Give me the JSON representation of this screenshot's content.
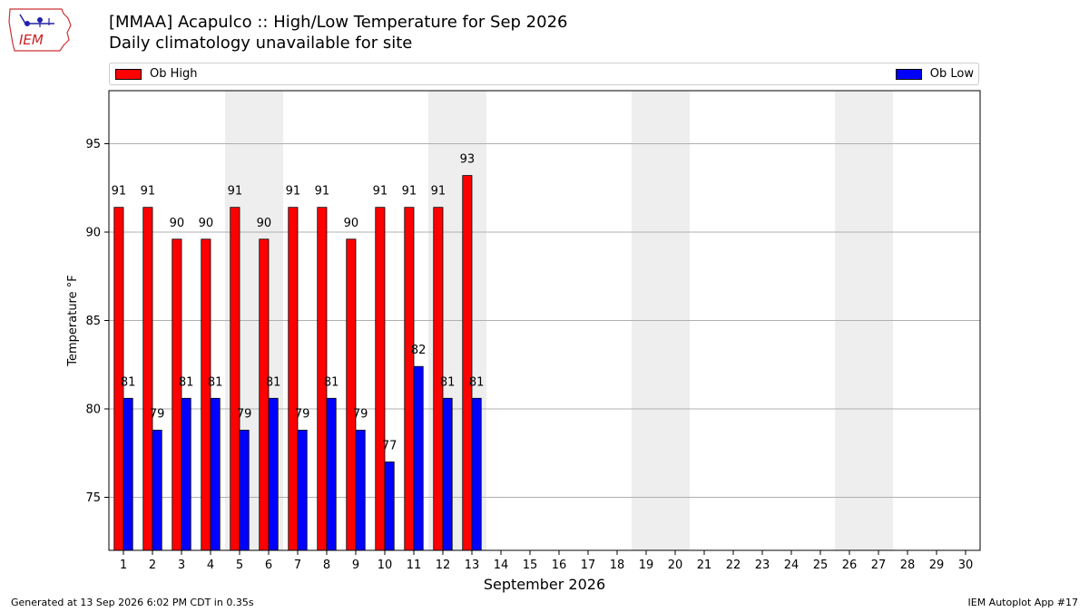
{
  "logo": {
    "text": "IEM"
  },
  "header": {
    "title": "[MMAA] Acapulco :: High/Low Temperature for Sep 2026",
    "subtitle": "Daily climatology unavailable for site"
  },
  "legend": {
    "high_label": "Ob High",
    "low_label": "Ob Low"
  },
  "footer": {
    "left": "Generated at 13 Sep 2026 6:02 PM CDT in 0.35s",
    "right": "IEM Autoplot App #17"
  },
  "chart_data": {
    "type": "bar",
    "title": "[MMAA] Acapulco :: High/Low Temperature for Sep 2026",
    "subtitle": "Daily climatology unavailable for site",
    "xlabel": "September 2026",
    "ylabel": "Temperature °F",
    "categories": [
      "1",
      "2",
      "3",
      "4",
      "5",
      "6",
      "7",
      "8",
      "9",
      "10",
      "11",
      "12",
      "13",
      "14",
      "15",
      "16",
      "17",
      "18",
      "19",
      "20",
      "21",
      "22",
      "23",
      "24",
      "25",
      "26",
      "27",
      "28",
      "29",
      "30"
    ],
    "series": [
      {
        "name": "Ob High",
        "color": "#ff0000",
        "values": [
          91.4,
          91.4,
          89.6,
          89.6,
          91.4,
          89.6,
          91.4,
          91.4,
          89.6,
          91.4,
          91.4,
          91.4,
          93.2,
          null,
          null,
          null,
          null,
          null,
          null,
          null,
          null,
          null,
          null,
          null,
          null,
          null,
          null,
          null,
          null,
          null
        ],
        "labels": [
          "91",
          "91",
          "90",
          "90",
          "91",
          "90",
          "91",
          "91",
          "90",
          "91",
          "91",
          "91",
          "93"
        ]
      },
      {
        "name": "Ob Low",
        "color": "#0000ff",
        "values": [
          80.6,
          78.8,
          80.6,
          80.6,
          78.8,
          80.6,
          78.8,
          80.6,
          78.8,
          77.0,
          82.4,
          80.6,
          80.6,
          null,
          null,
          null,
          null,
          null,
          null,
          null,
          null,
          null,
          null,
          null,
          null,
          null,
          null,
          null,
          null,
          null
        ],
        "labels": [
          "81",
          "79",
          "81",
          "81",
          "79",
          "81",
          "79",
          "81",
          "79",
          "77",
          "82",
          "81",
          "81"
        ]
      }
    ],
    "weekend_days": [
      5,
      6,
      12,
      13,
      19,
      20,
      26,
      27
    ],
    "yticks": [
      75,
      80,
      85,
      90,
      95
    ],
    "ylim": [
      72,
      98
    ],
    "xlim": [
      0.5,
      30.5
    ],
    "grid": "horizontal",
    "legend_position": "top"
  }
}
